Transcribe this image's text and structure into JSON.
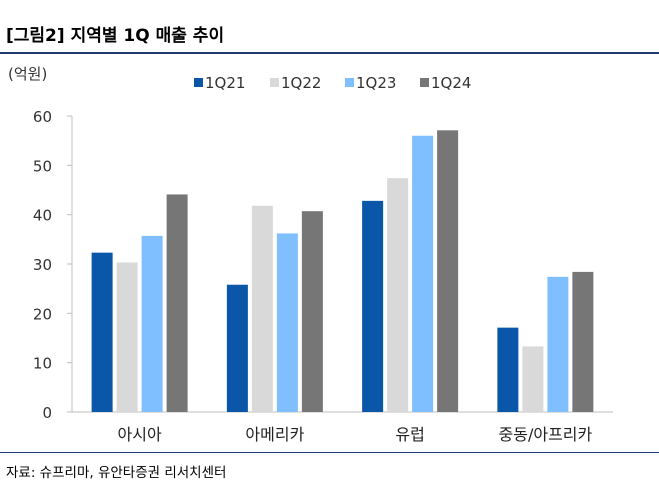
{
  "figure": {
    "title": "[그림2] 지역별 1Q 매출 추이",
    "source": "자료: 슈프리마, 유안타증권 리서치센터"
  },
  "chart_data": {
    "type": "bar",
    "title": "",
    "xlabel": "",
    "ylabel": "(억원)",
    "ylim": [
      0,
      60
    ],
    "yticks": [
      0,
      10,
      20,
      30,
      40,
      50,
      60
    ],
    "grid": false,
    "legend_position": "top",
    "categories": [
      "아시아",
      "아메리카",
      "유럽",
      "중동/아프리카"
    ],
    "series": [
      {
        "name": "1Q21",
        "color": "#0a56a8",
        "values": [
          32.3,
          25.8,
          42.8,
          17.1
        ]
      },
      {
        "name": "1Q22",
        "color": "#d9d9d9",
        "values": [
          30.3,
          41.8,
          47.4,
          13.3
        ]
      },
      {
        "name": "1Q23",
        "color": "#7fbfff",
        "values": [
          35.7,
          36.2,
          56.0,
          27.4
        ]
      },
      {
        "name": "1Q24",
        "color": "#767676",
        "values": [
          44.1,
          40.7,
          57.1,
          28.4
        ]
      }
    ]
  }
}
